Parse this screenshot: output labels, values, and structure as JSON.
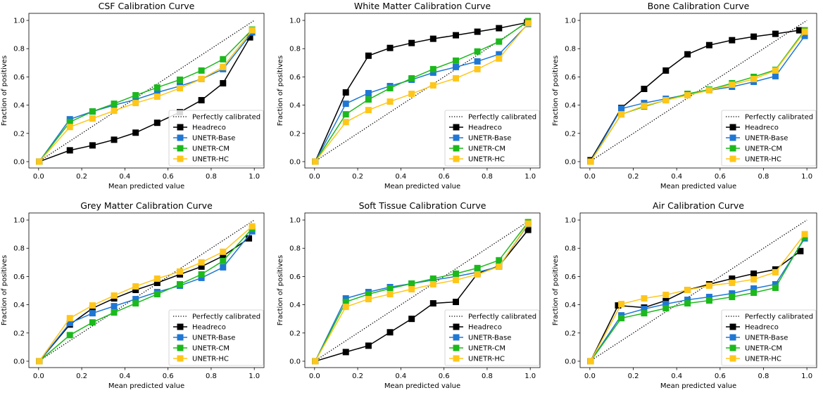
{
  "chart_data": [
    {
      "type": "line",
      "title": "CSF Calibration Curve",
      "xlabel": "Mean predicted value",
      "ylabel": "Fraction of positives",
      "xlim": [
        -0.045,
        1.045
      ],
      "ylim": [
        -0.045,
        1.05
      ],
      "xticks": [
        "0.0",
        "0.2",
        "0.4",
        "0.6",
        "0.8",
        "1.0"
      ],
      "yticks": [
        "0.0",
        "0.2",
        "0.4",
        "0.6",
        "0.8",
        "1.0"
      ],
      "legend_position": "lower-right",
      "reference": {
        "name": "Perfectly calibrated",
        "style": "dotted",
        "color": "#000000"
      },
      "series": [
        {
          "name": "Headreco",
          "color": "#000000",
          "x": [
            0.003,
            0.145,
            0.25,
            0.35,
            0.45,
            0.55,
            0.655,
            0.755,
            0.855,
            0.98
          ],
          "y": [
            0,
            0.08,
            0.115,
            0.155,
            0.205,
            0.275,
            0.35,
            0.435,
            0.555,
            0.88
          ]
        },
        {
          "name": "UNETR-Base",
          "color": "#1f77d4",
          "x": [
            0.003,
            0.145,
            0.25,
            0.35,
            0.45,
            0.55,
            0.655,
            0.755,
            0.855,
            0.99
          ],
          "y": [
            0,
            0.3,
            0.355,
            0.4,
            0.44,
            0.49,
            0.535,
            0.585,
            0.655,
            0.915
          ]
        },
        {
          "name": "UNETR-CM",
          "color": "#1cb91c",
          "x": [
            0.003,
            0.145,
            0.25,
            0.35,
            0.45,
            0.55,
            0.655,
            0.755,
            0.855,
            0.99
          ],
          "y": [
            0,
            0.28,
            0.355,
            0.41,
            0.47,
            0.525,
            0.58,
            0.645,
            0.725,
            0.935
          ]
        },
        {
          "name": "UNETR-HC",
          "color": "#ffc61a",
          "x": [
            0.003,
            0.145,
            0.25,
            0.35,
            0.45,
            0.55,
            0.655,
            0.755,
            0.855,
            0.99
          ],
          "y": [
            0,
            0.245,
            0.305,
            0.36,
            0.415,
            0.46,
            0.52,
            0.585,
            0.67,
            0.93
          ]
        }
      ]
    },
    {
      "type": "line",
      "title": "White Matter Calibration Curve",
      "xlabel": "Mean predicted value",
      "ylabel": "Fraction of positives",
      "xlim": [
        -0.045,
        1.045
      ],
      "ylim": [
        -0.045,
        1.05
      ],
      "xticks": [
        "0.0",
        "0.2",
        "0.4",
        "0.6",
        "0.8",
        "1.0"
      ],
      "yticks": [
        "0.0",
        "0.2",
        "0.4",
        "0.6",
        "0.8",
        "1.0"
      ],
      "legend_position": "lower-right",
      "reference": {
        "name": "Perfectly calibrated",
        "style": "dotted",
        "color": "#000000"
      },
      "series": [
        {
          "name": "Headreco",
          "color": "#000000",
          "x": [
            0.003,
            0.145,
            0.25,
            0.35,
            0.45,
            0.55,
            0.655,
            0.755,
            0.855,
            0.985
          ],
          "y": [
            0,
            0.49,
            0.75,
            0.805,
            0.84,
            0.87,
            0.895,
            0.92,
            0.945,
            0.985
          ]
        },
        {
          "name": "UNETR-Base",
          "color": "#1f77d4",
          "x": [
            0.003,
            0.145,
            0.25,
            0.35,
            0.45,
            0.55,
            0.655,
            0.755,
            0.855,
            0.99
          ],
          "y": [
            0,
            0.41,
            0.485,
            0.535,
            0.58,
            0.63,
            0.67,
            0.71,
            0.76,
            0.975
          ]
        },
        {
          "name": "UNETR-CM",
          "color": "#1cb91c",
          "x": [
            0.003,
            0.145,
            0.25,
            0.35,
            0.45,
            0.55,
            0.655,
            0.755,
            0.855,
            0.99
          ],
          "y": [
            0,
            0.335,
            0.44,
            0.52,
            0.59,
            0.655,
            0.715,
            0.78,
            0.85,
            0.995
          ]
        },
        {
          "name": "UNETR-HC",
          "color": "#ffc61a",
          "x": [
            0.003,
            0.145,
            0.25,
            0.35,
            0.45,
            0.55,
            0.655,
            0.755,
            0.855,
            0.99
          ],
          "y": [
            0,
            0.28,
            0.365,
            0.425,
            0.48,
            0.54,
            0.59,
            0.655,
            0.73,
            0.98
          ]
        }
      ]
    },
    {
      "type": "line",
      "title": "Bone Calibration Curve",
      "xlabel": "Mean predicted value",
      "ylabel": "Fraction of positives",
      "xlim": [
        -0.045,
        1.045
      ],
      "ylim": [
        -0.045,
        1.05
      ],
      "xticks": [
        "0.0",
        "0.2",
        "0.4",
        "0.6",
        "0.8",
        "1.0"
      ],
      "yticks": [
        "0.0",
        "0.2",
        "0.4",
        "0.6",
        "0.8",
        "1.0"
      ],
      "legend_position": "lower-right",
      "reference": {
        "name": "Perfectly calibrated",
        "style": "dotted",
        "color": "#000000"
      },
      "series": [
        {
          "name": "Headreco",
          "color": "#000000",
          "x": [
            0.003,
            0.145,
            0.25,
            0.35,
            0.45,
            0.55,
            0.655,
            0.755,
            0.855,
            0.965
          ],
          "y": [
            0.01,
            0.38,
            0.515,
            0.645,
            0.76,
            0.825,
            0.86,
            0.885,
            0.905,
            0.93
          ]
        },
        {
          "name": "UNETR-Base",
          "color": "#1f77d4",
          "x": [
            0.003,
            0.145,
            0.25,
            0.35,
            0.45,
            0.55,
            0.655,
            0.755,
            0.855,
            0.99
          ],
          "y": [
            0,
            0.375,
            0.415,
            0.445,
            0.475,
            0.505,
            0.53,
            0.565,
            0.605,
            0.89
          ]
        },
        {
          "name": "UNETR-CM",
          "color": "#1cb91c",
          "x": [
            0.003,
            0.145,
            0.25,
            0.35,
            0.45,
            0.55,
            0.655,
            0.755,
            0.855,
            0.99
          ],
          "y": [
            0,
            0.335,
            0.39,
            0.435,
            0.48,
            0.51,
            0.555,
            0.6,
            0.65,
            0.93
          ]
        },
        {
          "name": "UNETR-HC",
          "color": "#ffc61a",
          "x": [
            0.003,
            0.145,
            0.25,
            0.35,
            0.45,
            0.55,
            0.655,
            0.755,
            0.855,
            0.99
          ],
          "y": [
            0,
            0.335,
            0.395,
            0.435,
            0.47,
            0.505,
            0.545,
            0.585,
            0.645,
            0.92
          ]
        }
      ]
    },
    {
      "type": "line",
      "title": "Grey Matter Calibration Curve",
      "xlabel": "Mean predicted value",
      "ylabel": "Fraction of positives",
      "xlim": [
        -0.045,
        1.045
      ],
      "ylim": [
        -0.045,
        1.05
      ],
      "xticks": [
        "0.0",
        "0.2",
        "0.4",
        "0.6",
        "0.8",
        "1.0"
      ],
      "yticks": [
        "0.0",
        "0.2",
        "0.4",
        "0.6",
        "0.8",
        "1.0"
      ],
      "legend_position": "lower-right",
      "reference": {
        "name": "Perfectly calibrated",
        "style": "dotted",
        "color": "#000000"
      },
      "series": [
        {
          "name": "Headreco",
          "color": "#000000",
          "x": [
            0.003,
            0.145,
            0.25,
            0.35,
            0.45,
            0.55,
            0.655,
            0.755,
            0.855,
            0.975
          ],
          "y": [
            0,
            0.26,
            0.375,
            0.445,
            0.505,
            0.555,
            0.615,
            0.67,
            0.745,
            0.87
          ]
        },
        {
          "name": "UNETR-Base",
          "color": "#1f77d4",
          "x": [
            0.003,
            0.145,
            0.25,
            0.35,
            0.45,
            0.55,
            0.655,
            0.755,
            0.855,
            0.99
          ],
          "y": [
            0,
            0.27,
            0.34,
            0.39,
            0.44,
            0.49,
            0.535,
            0.59,
            0.665,
            0.92
          ]
        },
        {
          "name": "UNETR-CM",
          "color": "#1cb91c",
          "x": [
            0.003,
            0.145,
            0.25,
            0.35,
            0.45,
            0.55,
            0.655,
            0.755,
            0.855,
            0.99
          ],
          "y": [
            0,
            0.185,
            0.275,
            0.345,
            0.41,
            0.475,
            0.545,
            0.615,
            0.71,
            0.94
          ]
        },
        {
          "name": "UNETR-HC",
          "color": "#ffc61a",
          "x": [
            0.003,
            0.145,
            0.25,
            0.35,
            0.45,
            0.55,
            0.655,
            0.755,
            0.855,
            0.99
          ],
          "y": [
            0,
            0.305,
            0.395,
            0.465,
            0.53,
            0.585,
            0.635,
            0.7,
            0.775,
            0.955
          ]
        }
      ]
    },
    {
      "type": "line",
      "title": "Soft Tissue Calibration Curve",
      "xlabel": "Mean predicted value",
      "ylabel": "Fraction of positives",
      "xlim": [
        -0.045,
        1.045
      ],
      "ylim": [
        -0.045,
        1.05
      ],
      "xticks": [
        "0.0",
        "0.2",
        "0.4",
        "0.6",
        "0.8",
        "1.0"
      ],
      "yticks": [
        "0.0",
        "0.2",
        "0.4",
        "0.6",
        "0.8",
        "1.0"
      ],
      "legend_position": "lower-right",
      "reference": {
        "name": "Perfectly calibrated",
        "style": "dotted",
        "color": "#000000"
      },
      "series": [
        {
          "name": "Headreco",
          "color": "#000000",
          "x": [
            0.003,
            0.145,
            0.25,
            0.35,
            0.45,
            0.55,
            0.655,
            0.755,
            0.855,
            0.99
          ],
          "y": [
            0,
            0.065,
            0.11,
            0.205,
            0.3,
            0.41,
            0.42,
            0.62,
            0.675,
            0.93
          ]
        },
        {
          "name": "UNETR-Base",
          "color": "#1f77d4",
          "x": [
            0.003,
            0.145,
            0.25,
            0.35,
            0.45,
            0.55,
            0.655,
            0.755,
            0.855,
            0.99
          ],
          "y": [
            0,
            0.445,
            0.49,
            0.525,
            0.55,
            0.575,
            0.6,
            0.63,
            0.67,
            0.97
          ]
        },
        {
          "name": "UNETR-CM",
          "color": "#1cb91c",
          "x": [
            0.003,
            0.145,
            0.25,
            0.35,
            0.45,
            0.55,
            0.655,
            0.755,
            0.855,
            0.99
          ],
          "y": [
            0,
            0.42,
            0.475,
            0.515,
            0.55,
            0.585,
            0.62,
            0.66,
            0.715,
            0.985
          ]
        },
        {
          "name": "UNETR-HC",
          "color": "#ffc61a",
          "x": [
            0.003,
            0.145,
            0.25,
            0.35,
            0.45,
            0.55,
            0.655,
            0.755,
            0.855,
            0.99
          ],
          "y": [
            0,
            0.385,
            0.44,
            0.475,
            0.51,
            0.545,
            0.575,
            0.615,
            0.67,
            0.975
          ]
        }
      ]
    },
    {
      "type": "line",
      "title": "Air Calibration Curve",
      "xlabel": "Mean predicted value",
      "ylabel": "Fraction of positives",
      "xlim": [
        -0.045,
        1.045
      ],
      "ylim": [
        -0.045,
        1.05
      ],
      "xticks": [
        "0.0",
        "0.2",
        "0.4",
        "0.6",
        "0.8",
        "1.0"
      ],
      "yticks": [
        "0.0",
        "0.2",
        "0.4",
        "0.6",
        "0.8",
        "1.0"
      ],
      "legend_position": "lower-right",
      "reference": {
        "name": "Perfectly calibrated",
        "style": "dotted",
        "color": "#000000"
      },
      "series": [
        {
          "name": "Headreco",
          "color": "#000000",
          "x": [
            0.003,
            0.13,
            0.25,
            0.35,
            0.45,
            0.55,
            0.655,
            0.755,
            0.855,
            0.97
          ],
          "y": [
            0,
            0.395,
            0.38,
            0.43,
            0.505,
            0.545,
            0.585,
            0.62,
            0.65,
            0.78
          ]
        },
        {
          "name": "UNETR-Base",
          "color": "#1f77d4",
          "x": [
            0.003,
            0.145,
            0.25,
            0.35,
            0.45,
            0.55,
            0.655,
            0.755,
            0.855,
            0.99
          ],
          "y": [
            0,
            0.325,
            0.37,
            0.405,
            0.435,
            0.455,
            0.48,
            0.515,
            0.545,
            0.87
          ]
        },
        {
          "name": "UNETR-CM",
          "color": "#1cb91c",
          "x": [
            0.003,
            0.145,
            0.25,
            0.35,
            0.45,
            0.55,
            0.655,
            0.755,
            0.855,
            0.99
          ],
          "y": [
            0,
            0.305,
            0.34,
            0.375,
            0.41,
            0.43,
            0.455,
            0.485,
            0.52,
            0.88
          ]
        },
        {
          "name": "UNETR-HC",
          "color": "#ffc61a",
          "x": [
            0.003,
            0.145,
            0.25,
            0.35,
            0.45,
            0.55,
            0.655,
            0.755,
            0.855,
            0.99
          ],
          "y": [
            0,
            0.405,
            0.445,
            0.47,
            0.505,
            0.535,
            0.555,
            0.58,
            0.63,
            0.9
          ]
        }
      ]
    }
  ]
}
